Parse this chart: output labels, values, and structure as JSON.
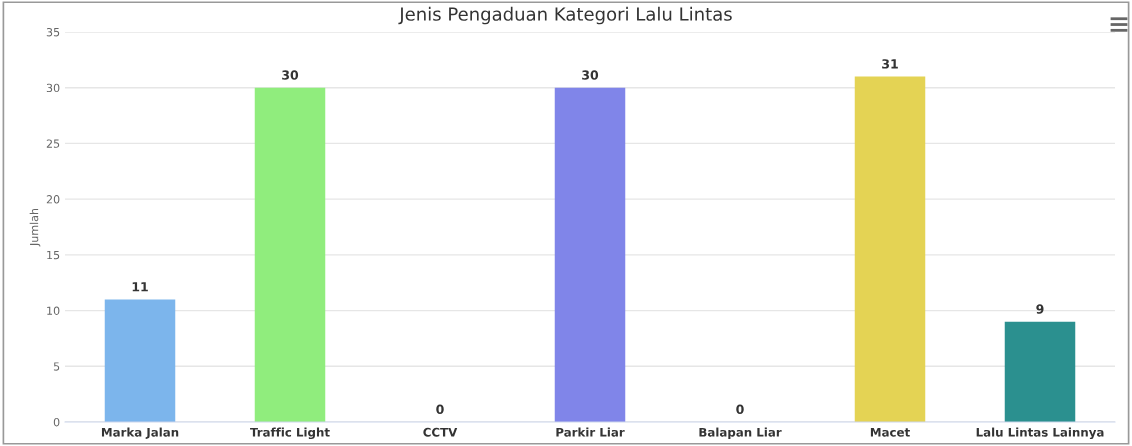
{
  "chart_data": {
    "type": "bar",
    "title": "Jenis Pengaduan Kategori Lalu Lintas",
    "ylabel": "Jumlah",
    "categories": [
      "Marka Jalan",
      "Traffic Light",
      "CCTV",
      "Parkir Liar",
      "Balapan Liar",
      "Macet",
      "Lalu Lintas Lainnya"
    ],
    "values": [
      11,
      30,
      0,
      30,
      0,
      31,
      9
    ],
    "colors": [
      "#7cb5ec",
      "#90ed7d",
      "#f7a35c",
      "#8085e9",
      "#f15c80",
      "#e4d354",
      "#2b908f"
    ],
    "ylim": [
      0,
      35
    ],
    "yticks": [
      0,
      5,
      10,
      15,
      20,
      25,
      30,
      35
    ],
    "grid": "y",
    "data_labels": true
  }
}
